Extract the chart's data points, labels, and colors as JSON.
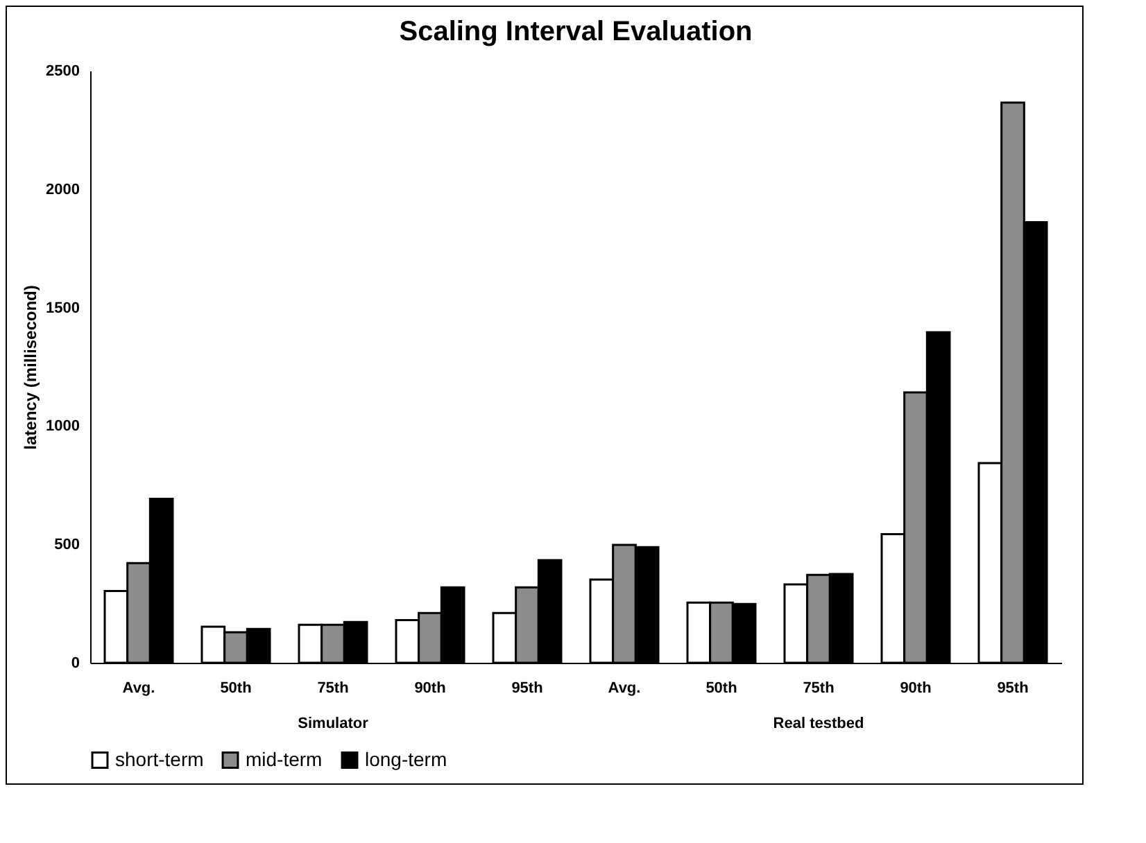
{
  "chart_data": {
    "type": "bar",
    "title": "Scaling Interval Evaluation",
    "ylabel": "latency (millisecond)",
    "categories": [
      "Avg.",
      "50th",
      "75th",
      "90th",
      "95th",
      "Avg.",
      "50th",
      "75th",
      "90th",
      "95th"
    ],
    "series": [
      {
        "name": "short-term",
        "color": "#ffffff",
        "values": [
          303,
          152,
          160,
          180,
          210,
          351,
          254,
          331,
          543,
          843
        ]
      },
      {
        "name": "mid-term",
        "color": "#8c8c8c",
        "values": [
          421,
          129,
          160,
          210,
          318,
          498,
          254,
          371,
          1142,
          2365
        ]
      },
      {
        "name": "long-term",
        "color": "#000000",
        "values": [
          692,
          143,
          172,
          318,
          433,
          488,
          248,
          375,
          1396,
          1860
        ]
      }
    ],
    "annotations": [
      "Simulator",
      "Real testbed"
    ],
    "ylim": [
      0,
      2500
    ],
    "yticks": [
      0,
      500,
      1000,
      1500,
      2000,
      2500
    ],
    "grid": false,
    "legend": "bottom"
  }
}
